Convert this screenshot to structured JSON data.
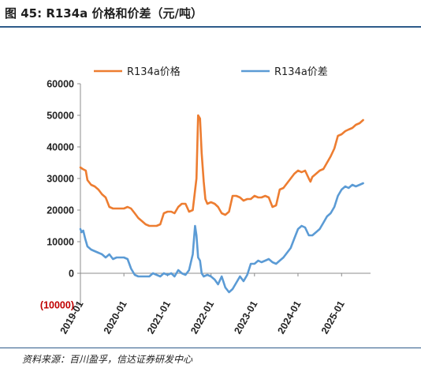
{
  "figure": {
    "title": "图 45:  R134a 价格和价差（元/吨）",
    "source": "资料来源：百川盈孚，信达证券研发中心"
  },
  "colors": {
    "series_price": "#ED7D31",
    "series_spread": "#5B9BD5",
    "rule": "#2e5c8a",
    "negative_tick": "#c00000"
  },
  "chart_data": {
    "type": "line",
    "title": "",
    "xlabel": "",
    "ylabel": "",
    "ylim": [
      -10000,
      60000
    ],
    "y_ticks": [
      60000,
      50000,
      40000,
      30000,
      20000,
      10000,
      0,
      -10000
    ],
    "y_tick_labels": [
      "60000",
      "50000",
      "40000",
      "30000",
      "20000",
      "10000",
      "0",
      "(10000)"
    ],
    "x_range": [
      "2019-01",
      "2025-09"
    ],
    "x_ticks": [
      "2019-01",
      "2020-01",
      "2021-01",
      "2022-01",
      "2023-01",
      "2024-01",
      "2025-01"
    ],
    "x_tick_labels": [
      "2019-01",
      "2020-01",
      "2021-01",
      "2022-01",
      "2023-01",
      "2024-01",
      "2025-01"
    ],
    "legend_position": "top",
    "grid": false,
    "series": [
      {
        "name": "R134a价格",
        "color": "#ED7D31",
        "points": [
          [
            "2019-01-01",
            33500
          ],
          [
            "2019-01-20",
            33000
          ],
          [
            "2019-02-15",
            32500
          ],
          [
            "2019-03-01",
            29500
          ],
          [
            "2019-04-01",
            28000
          ],
          [
            "2019-05-01",
            27500
          ],
          [
            "2019-06-01",
            26500
          ],
          [
            "2019-07-01",
            25000
          ],
          [
            "2019-08-01",
            24000
          ],
          [
            "2019-09-01",
            21000
          ],
          [
            "2019-10-01",
            20500
          ],
          [
            "2019-11-01",
            20500
          ],
          [
            "2019-12-01",
            20500
          ],
          [
            "2020-01-01",
            20500
          ],
          [
            "2020-02-01",
            21000
          ],
          [
            "2020-03-01",
            20500
          ],
          [
            "2020-04-01",
            19000
          ],
          [
            "2020-05-01",
            17500
          ],
          [
            "2020-06-01",
            16500
          ],
          [
            "2020-07-01",
            15500
          ],
          [
            "2020-08-01",
            15000
          ],
          [
            "2020-09-01",
            15000
          ],
          [
            "2020-10-01",
            15000
          ],
          [
            "2020-11-01",
            15500
          ],
          [
            "2020-12-01",
            19000
          ],
          [
            "2021-01-01",
            19500
          ],
          [
            "2021-02-01",
            19500
          ],
          [
            "2021-03-01",
            19000
          ],
          [
            "2021-04-01",
            21000
          ],
          [
            "2021-05-01",
            22000
          ],
          [
            "2021-06-01",
            22000
          ],
          [
            "2021-07-01",
            19500
          ],
          [
            "2021-08-01",
            20000
          ],
          [
            "2021-09-01",
            30000
          ],
          [
            "2021-09-15",
            50000
          ],
          [
            "2021-10-01",
            49000
          ],
          [
            "2021-10-15",
            38000
          ],
          [
            "2021-11-01",
            29000
          ],
          [
            "2021-11-15",
            23500
          ],
          [
            "2021-12-01",
            22000
          ],
          [
            "2022-01-01",
            22500
          ],
          [
            "2022-02-01",
            22000
          ],
          [
            "2022-03-01",
            21000
          ],
          [
            "2022-04-01",
            19000
          ],
          [
            "2022-05-01",
            18500
          ],
          [
            "2022-06-01",
            19500
          ],
          [
            "2022-07-01",
            24500
          ],
          [
            "2022-08-01",
            24500
          ],
          [
            "2022-09-01",
            24000
          ],
          [
            "2022-10-01",
            23000
          ],
          [
            "2022-11-01",
            23500
          ],
          [
            "2022-12-01",
            23500
          ],
          [
            "2023-01-01",
            24500
          ],
          [
            "2023-02-01",
            24000
          ],
          [
            "2023-03-01",
            24000
          ],
          [
            "2023-04-01",
            24500
          ],
          [
            "2023-05-01",
            24000
          ],
          [
            "2023-06-01",
            21000
          ],
          [
            "2023-07-01",
            21500
          ],
          [
            "2023-08-01",
            26500
          ],
          [
            "2023-09-01",
            27000
          ],
          [
            "2023-10-01",
            28500
          ],
          [
            "2023-11-01",
            30000
          ],
          [
            "2023-12-01",
            31500
          ],
          [
            "2024-01-01",
            32500
          ],
          [
            "2024-02-01",
            32000
          ],
          [
            "2024-03-01",
            32500
          ],
          [
            "2024-04-01",
            30000
          ],
          [
            "2024-04-15",
            29000
          ],
          [
            "2024-05-01",
            30500
          ],
          [
            "2024-06-01",
            31500
          ],
          [
            "2024-07-01",
            32500
          ],
          [
            "2024-08-01",
            33000
          ],
          [
            "2024-09-01",
            35000
          ],
          [
            "2024-10-01",
            37000
          ],
          [
            "2024-11-01",
            39500
          ],
          [
            "2024-12-01",
            43500
          ],
          [
            "2025-01-01",
            44000
          ],
          [
            "2025-02-01",
            45000
          ],
          [
            "2025-03-01",
            45500
          ],
          [
            "2025-04-01",
            46000
          ],
          [
            "2025-05-01",
            47000
          ],
          [
            "2025-06-01",
            47500
          ],
          [
            "2025-07-01",
            48500
          ]
        ]
      },
      {
        "name": "R134a价差",
        "color": "#5B9BD5",
        "points": [
          [
            "2019-01-01",
            14000
          ],
          [
            "2019-01-10",
            13000
          ],
          [
            "2019-01-25",
            13500
          ],
          [
            "2019-02-10",
            11000
          ],
          [
            "2019-03-01",
            8500
          ],
          [
            "2019-04-01",
            7500
          ],
          [
            "2019-05-01",
            7000
          ],
          [
            "2019-06-01",
            6500
          ],
          [
            "2019-07-01",
            6000
          ],
          [
            "2019-08-01",
            5000
          ],
          [
            "2019-09-01",
            6000
          ],
          [
            "2019-10-01",
            4500
          ],
          [
            "2019-11-01",
            5000
          ],
          [
            "2019-12-01",
            5000
          ],
          [
            "2020-01-01",
            5000
          ],
          [
            "2020-02-01",
            4500
          ],
          [
            "2020-03-01",
            1500
          ],
          [
            "2020-04-01",
            -500
          ],
          [
            "2020-05-01",
            -1000
          ],
          [
            "2020-06-01",
            -1000
          ],
          [
            "2020-07-01",
            -1000
          ],
          [
            "2020-08-01",
            -1000
          ],
          [
            "2020-09-01",
            0
          ],
          [
            "2020-10-01",
            -500
          ],
          [
            "2020-11-01",
            -1000
          ],
          [
            "2020-12-01",
            0
          ],
          [
            "2021-01-01",
            -500
          ],
          [
            "2021-02-01",
            0
          ],
          [
            "2021-03-01",
            -1000
          ],
          [
            "2021-04-01",
            1000
          ],
          [
            "2021-05-01",
            0
          ],
          [
            "2021-06-01",
            -500
          ],
          [
            "2021-07-01",
            1000
          ],
          [
            "2021-08-01",
            6000
          ],
          [
            "2021-08-20",
            15000
          ],
          [
            "2021-09-01",
            12000
          ],
          [
            "2021-09-15",
            5000
          ],
          [
            "2021-10-01",
            4000
          ],
          [
            "2021-10-15",
            0
          ],
          [
            "2021-11-01",
            -1000
          ],
          [
            "2021-12-01",
            -500
          ],
          [
            "2022-01-01",
            -1000
          ],
          [
            "2022-02-01",
            -2000
          ],
          [
            "2022-03-01",
            -3500
          ],
          [
            "2022-04-01",
            -1000
          ],
          [
            "2022-05-01",
            -4500
          ],
          [
            "2022-06-01",
            -6000
          ],
          [
            "2022-07-01",
            -5000
          ],
          [
            "2022-08-01",
            -3000
          ],
          [
            "2022-09-01",
            -1000
          ],
          [
            "2022-10-01",
            -2500
          ],
          [
            "2022-11-01",
            -500
          ],
          [
            "2022-12-01",
            3000
          ],
          [
            "2023-01-01",
            3000
          ],
          [
            "2023-02-01",
            4000
          ],
          [
            "2023-03-01",
            3500
          ],
          [
            "2023-04-01",
            4000
          ],
          [
            "2023-05-01",
            4500
          ],
          [
            "2023-06-01",
            3500
          ],
          [
            "2023-07-01",
            3000
          ],
          [
            "2023-08-01",
            4000
          ],
          [
            "2023-09-01",
            5000
          ],
          [
            "2023-10-01",
            6500
          ],
          [
            "2023-11-01",
            8000
          ],
          [
            "2023-12-01",
            11000
          ],
          [
            "2024-01-01",
            14000
          ],
          [
            "2024-02-01",
            15000
          ],
          [
            "2024-03-01",
            14500
          ],
          [
            "2024-04-01",
            12000
          ],
          [
            "2024-05-01",
            12000
          ],
          [
            "2024-06-01",
            13000
          ],
          [
            "2024-07-01",
            14000
          ],
          [
            "2024-08-01",
            16000
          ],
          [
            "2024-09-01",
            18000
          ],
          [
            "2024-10-01",
            19000
          ],
          [
            "2024-11-01",
            21000
          ],
          [
            "2024-12-01",
            24500
          ],
          [
            "2025-01-01",
            26500
          ],
          [
            "2025-02-01",
            27500
          ],
          [
            "2025-03-01",
            27000
          ],
          [
            "2025-04-01",
            28000
          ],
          [
            "2025-05-01",
            27500
          ],
          [
            "2025-06-01",
            28000
          ],
          [
            "2025-07-01",
            28500
          ]
        ]
      }
    ]
  }
}
